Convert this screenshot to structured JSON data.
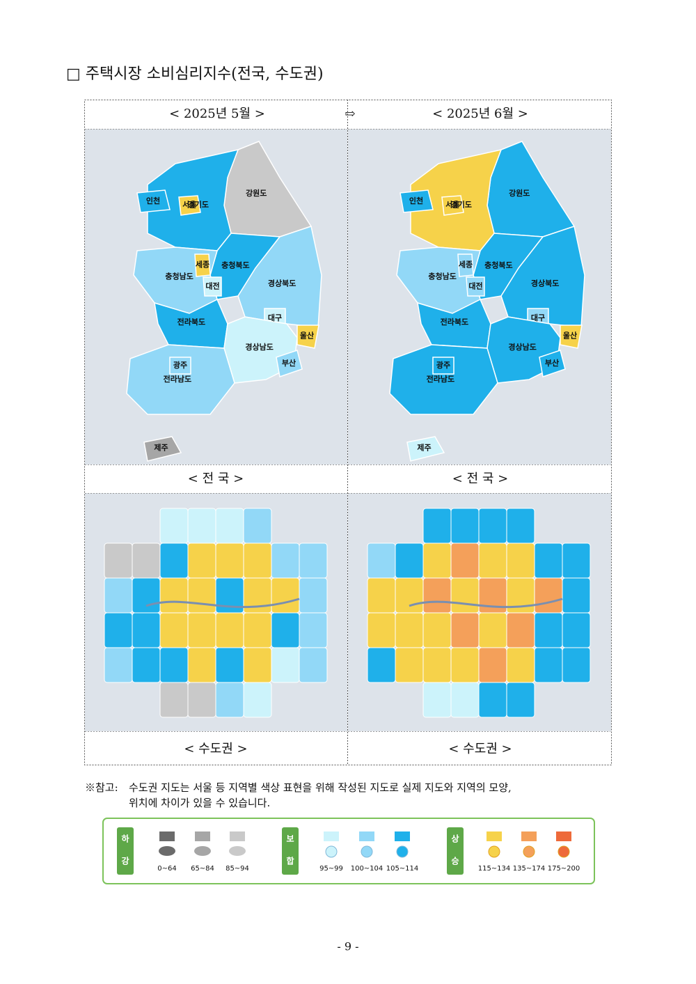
{
  "header": {
    "title": "□ 주택시장 소비심리지수(전국, 수도권)"
  },
  "table": {
    "periods": [
      "< 2025년 5월 >",
      "< 2025년 6월 >"
    ],
    "arrow": "⇨",
    "captions": [
      "< 전  국 >",
      "< 전  국 >",
      "< 수도권 >",
      "< 수도권 >"
    ]
  },
  "national": {
    "regions": [
      "강원도",
      "경기도",
      "서울",
      "인천",
      "충청북도",
      "충청남도",
      "세종",
      "대전",
      "경상북도",
      "대구",
      "전라북도",
      "경상남도",
      "울산",
      "부산",
      "전라남도",
      "광주",
      "제주"
    ],
    "fills": [
      [
        "#c9c9c9",
        "#1fb0ea",
        "#f6d24a",
        "#1fb0ea",
        "#1fb0ea",
        "#92d8f7",
        "#f6d24a",
        "#ccf3fb",
        "#92d8f7",
        "#ccf3fb",
        "#1fb0ea",
        "#ccf3fb",
        "#f6d24a",
        "#92d8f7",
        "#92d8f7",
        "#92d8f7",
        "#a6a6a6"
      ],
      [
        "#1fb0ea",
        "#f6d24a",
        "#f6d24a",
        "#1fb0ea",
        "#1fb0ea",
        "#92d8f7",
        "#92d8f7",
        "#92d8f7",
        "#1fb0ea",
        "#92d8f7",
        "#1fb0ea",
        "#1fb0ea",
        "#f6d24a",
        "#1fb0ea",
        "#1fb0ea",
        "#1fb0ea",
        "#ccf3fb"
      ]
    ]
  },
  "capital": {
    "fills": [
      [
        "#ccf3fb",
        "#ccf3fb",
        "#ccf3fb",
        "#92d8f7",
        "#c9c9c9",
        "#c9c9c9",
        "#1fb0ea",
        "#f6d24a",
        "#f6d24a",
        "#f6d24a",
        "#92d8f7",
        "#92d8f7",
        "#92d8f7",
        "#1fb0ea",
        "#f6d24a",
        "#f6d24a",
        "#1fb0ea",
        "#f6d24a",
        "#f6d24a",
        "#92d8f7",
        "#1fb0ea",
        "#1fb0ea",
        "#f6d24a",
        "#f6d24a",
        "#f6d24a",
        "#f6d24a",
        "#1fb0ea",
        "#92d8f7",
        "#92d8f7",
        "#1fb0ea",
        "#1fb0ea",
        "#f6d24a",
        "#1fb0ea",
        "#f6d24a",
        "#ccf3fb",
        "#92d8f7",
        "#c9c9c9",
        "#c9c9c9",
        "#92d8f7",
        "#ccf3fb"
      ],
      [
        "#1fb0ea",
        "#1fb0ea",
        "#1fb0ea",
        "#1fb0ea",
        "#92d8f7",
        "#1fb0ea",
        "#f6d24a",
        "#f4a05a",
        "#f6d24a",
        "#f6d24a",
        "#1fb0ea",
        "#1fb0ea",
        "#f6d24a",
        "#f6d24a",
        "#f4a05a",
        "#f6d24a",
        "#f4a05a",
        "#f6d24a",
        "#f4a05a",
        "#1fb0ea",
        "#f6d24a",
        "#f6d24a",
        "#f6d24a",
        "#f4a05a",
        "#f6d24a",
        "#f4a05a",
        "#1fb0ea",
        "#1fb0ea",
        "#1fb0ea",
        "#f6d24a",
        "#f6d24a",
        "#f6d24a",
        "#f4a05a",
        "#f6d24a",
        "#1fb0ea",
        "#1fb0ea",
        "#ccf3fb",
        "#ccf3fb",
        "#1fb0ea",
        "#1fb0ea"
      ]
    ]
  },
  "note": {
    "mark": "※참고:",
    "lines": [
      "수도권 지도는 서울 등 지역별 색상 표현을 위해 작성된 지도로 실제 지도와 지역의 모양,",
      "위치에 차이가 있을 수 있습니다."
    ]
  },
  "legend": {
    "groups": [
      {
        "chars": [
          "하",
          "강"
        ],
        "items": [
          {
            "color": "#6b6b6b",
            "range": "0~64"
          },
          {
            "color": "#a6a6a6",
            "range": "65~84"
          },
          {
            "color": "#c9c9c9",
            "range": "85~94"
          }
        ]
      },
      {
        "chars": [
          "보",
          "합"
        ],
        "items": [
          {
            "color": "#ccf3fb",
            "range": "95~99"
          },
          {
            "color": "#92d8f7",
            "range": "100~104"
          },
          {
            "color": "#1fb0ea",
            "range": "105~114"
          }
        ]
      },
      {
        "chars": [
          "상",
          "승"
        ],
        "items": [
          {
            "color": "#f6d24a",
            "range": "115~134"
          },
          {
            "color": "#f4a05a",
            "range": "135~174"
          },
          {
            "color": "#ee6a3a",
            "range": "175~200"
          }
        ]
      }
    ]
  },
  "footer": {
    "page": "- 9 -"
  }
}
